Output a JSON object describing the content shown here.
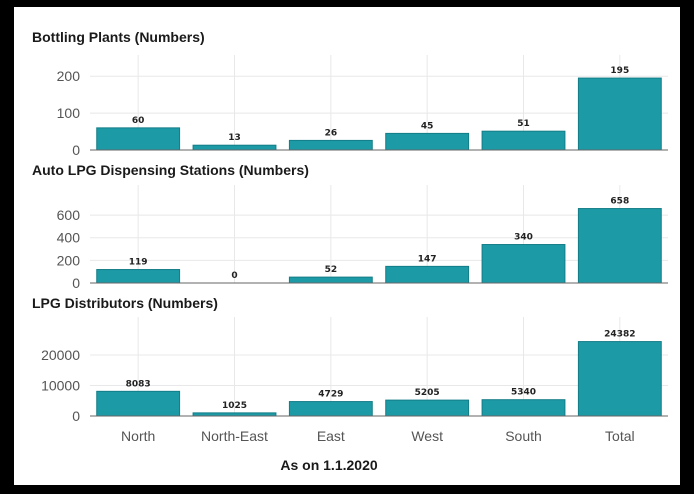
{
  "chart_data": {
    "type": "bar",
    "categories": [
      "North",
      "North-East",
      "East",
      "West",
      "South",
      "Total"
    ],
    "xlabel": "As on 1.1.2020",
    "colors": {
      "bar": "#1c9aa6",
      "bar_edge": "#137d87"
    },
    "panels": [
      {
        "title": "Bottling Plants (Numbers)",
        "values": [
          60,
          13,
          26,
          45,
          51,
          195
        ],
        "yticks": [
          0,
          100,
          200
        ],
        "ylim": [
          0,
          225
        ]
      },
      {
        "title": "Auto LPG Dispensing Stations (Numbers)",
        "values": [
          119,
          0,
          52,
          147,
          340,
          658
        ],
        "yticks": [
          0,
          200,
          400,
          600
        ],
        "ylim": [
          0,
          760
        ]
      },
      {
        "title": "LPG Distributors (Numbers)",
        "values": [
          8083,
          1025,
          4729,
          5205,
          5340,
          24382
        ],
        "yticks": [
          0,
          10000,
          20000
        ],
        "ylim": [
          0,
          28500
        ]
      }
    ]
  }
}
